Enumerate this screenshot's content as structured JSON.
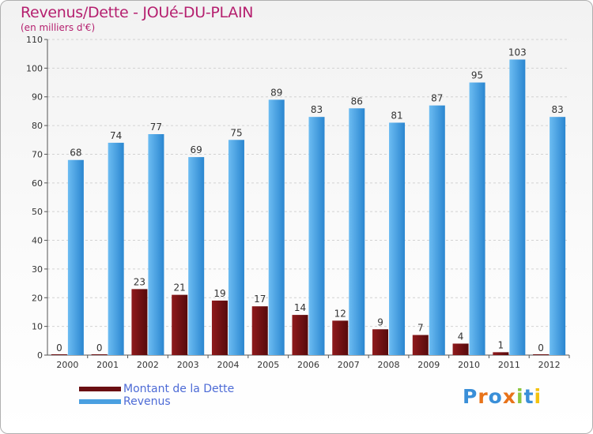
{
  "header": {
    "title": "Revenus/Dette - JOUé-DU-PLAIN",
    "subtitle": "(en milliers d'€)"
  },
  "legend": {
    "items": [
      {
        "label": "Montant de la Dette",
        "color": "#6a0f12"
      },
      {
        "label": "Revenus",
        "color": "#4a9fe0"
      }
    ]
  },
  "logo": {
    "letters": [
      {
        "ch": "P",
        "color": "#3a8fd8"
      },
      {
        "ch": "r",
        "color": "#e8731a"
      },
      {
        "ch": "o",
        "color": "#3a8fd8"
      },
      {
        "ch": "x",
        "color": "#e8731a"
      },
      {
        "ch": "i",
        "color": "#8cc63f"
      },
      {
        "ch": "t",
        "color": "#3a8fd8"
      },
      {
        "ch": "i",
        "color": "#f4c20d"
      }
    ]
  },
  "colors": {
    "accent": "#b5206f",
    "debt": "#6a0f12",
    "revenue": "#4a9fe0"
  },
  "chart_data": {
    "type": "bar",
    "title": "Revenus/Dette - JOUé-DU-PLAIN",
    "subtitle": "(en milliers d'€)",
    "categories": [
      "2000",
      "2001",
      "2002",
      "2003",
      "2004",
      "2005",
      "2006",
      "2007",
      "2008",
      "2009",
      "2010",
      "2011",
      "2012"
    ],
    "series": [
      {
        "name": "Montant de la Dette",
        "values": [
          0,
          0,
          23,
          21,
          19,
          17,
          14,
          12,
          9,
          7,
          4,
          1,
          0
        ]
      },
      {
        "name": "Revenus",
        "values": [
          68,
          74,
          77,
          69,
          75,
          89,
          83,
          86,
          81,
          87,
          95,
          103,
          83
        ]
      }
    ],
    "ylim": [
      0,
      110
    ],
    "yticks": [
      0,
      10,
      20,
      30,
      40,
      50,
      60,
      70,
      80,
      90,
      100,
      110
    ],
    "grid": true,
    "legend_position": "bottom-left"
  }
}
